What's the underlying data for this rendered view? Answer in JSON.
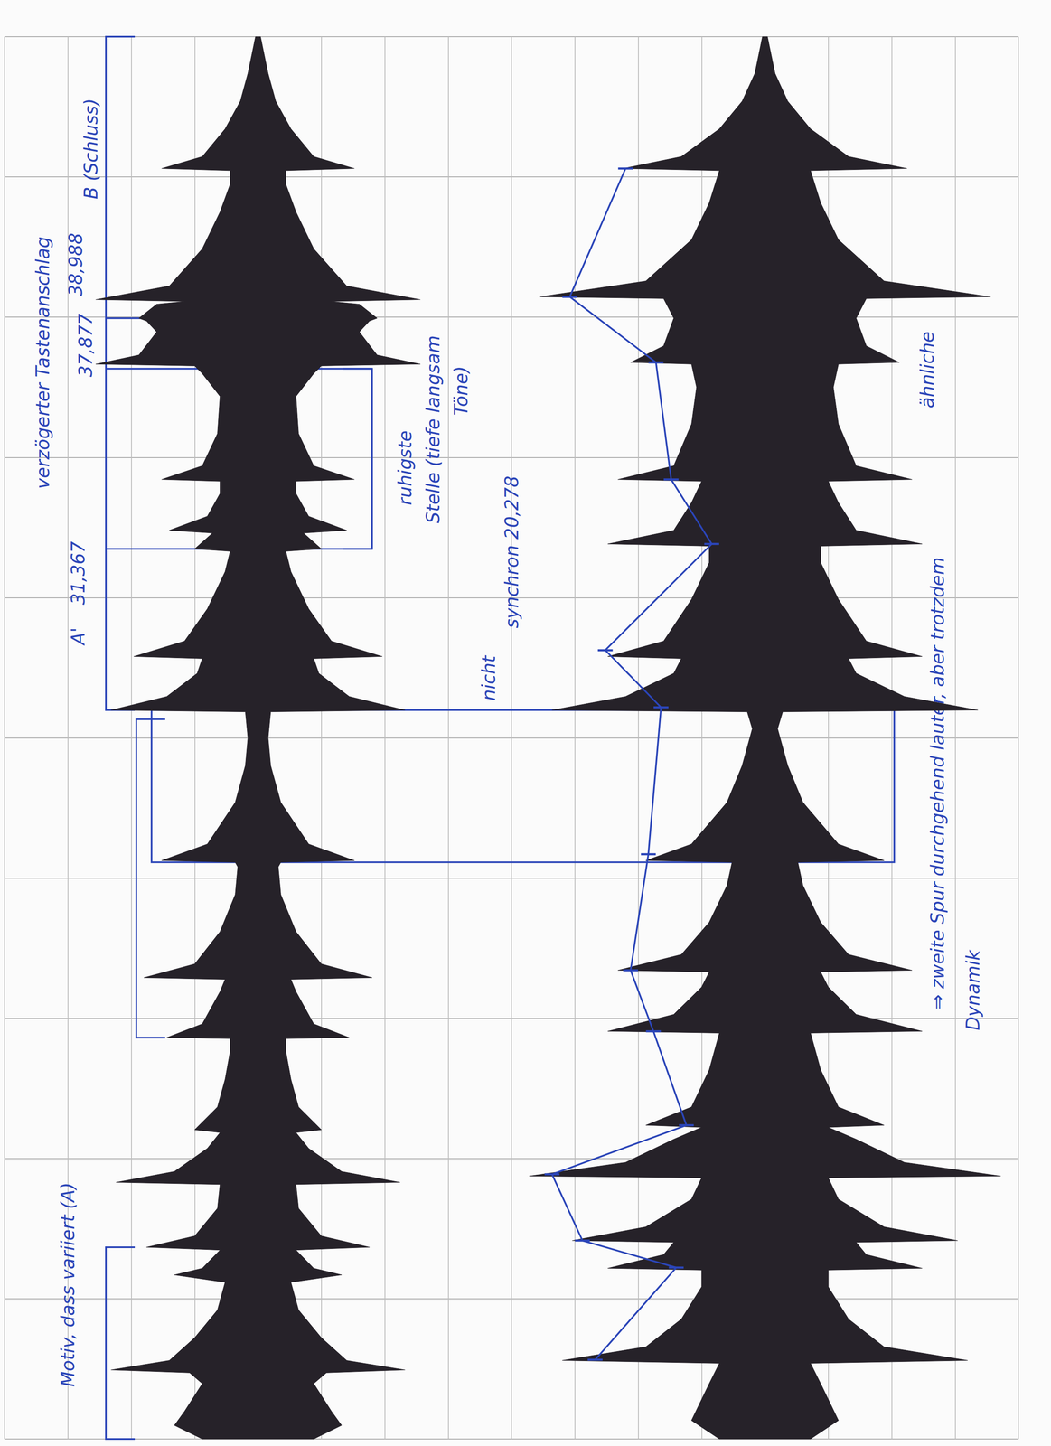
{
  "chart_data": {
    "type": "waveform",
    "xlim": [
      0,
      40
    ],
    "xticks": [
      0,
      4,
      8,
      12,
      16,
      20,
      24,
      28,
      32,
      36,
      40
    ],
    "ylim": [
      -1,
      1
    ],
    "yticks": [
      -1,
      -0.75,
      -0.5,
      -0.25,
      0,
      0.25,
      0.5,
      0.75,
      1
    ],
    "grid": true,
    "tick_labels": false,
    "series": [
      {
        "color": "#262229",
        "x": [
          0,
          0.39,
          0.79,
          1.58,
          1.89,
          1.97,
          2.24,
          2.89,
          3.68,
          4.47,
          4.68,
          4.87,
          5.39,
          5.47,
          5.79,
          6.58,
          7.26,
          7.32,
          7.63,
          8.29,
          8.74,
          8.82,
          9.47,
          10.26,
          11.05,
          11.42,
          11.45,
          11.84,
          12.76,
          13.11,
          13.16,
          13.55,
          14.47,
          15.53,
          16.32,
          16.45,
          16.5,
          16.97,
          18.16,
          19.21,
          20,
          20.74,
          20.79,
          21.18,
          21.84,
          22.26,
          22.32,
          22.76,
          23.68,
          24.74,
          25.32,
          25.39,
          25.84,
          25.92,
          26.32,
          26.97,
          27.32,
          27.37,
          27.76,
          28.68,
          29.74,
          30.39,
          30.61,
          30.66,
          30.92,
          31.58,
          31.89,
          31.97,
          32.37,
          32.45,
          32.5,
          32.89,
          33.95,
          35,
          35.79,
          36.18,
          36.24,
          36.58,
          37.37,
          38.16,
          38.95,
          40
        ],
        "values": [
          0.22,
          0.33,
          0.29,
          0.22,
          0.27,
          0.58,
          0.35,
          0.25,
          0.16,
          0.13,
          0.33,
          0.22,
          0.15,
          0.44,
          0.25,
          0.16,
          0.15,
          0.56,
          0.33,
          0.2,
          0.15,
          0.25,
          0.16,
          0.13,
          0.11,
          0.11,
          0.36,
          0.22,
          0.15,
          0.13,
          0.45,
          0.25,
          0.15,
          0.09,
          0.08,
          0.09,
          0.38,
          0.2,
          0.09,
          0.05,
          0.04,
          0.05,
          0.58,
          0.36,
          0.24,
          0.22,
          0.49,
          0.29,
          0.2,
          0.13,
          0.11,
          0.25,
          0.18,
          0.35,
          0.2,
          0.15,
          0.15,
          0.38,
          0.22,
          0.16,
          0.15,
          0.22,
          0.25,
          0.64,
          0.47,
          0.4,
          0.44,
          0.47,
          0.4,
          0.29,
          0.64,
          0.35,
          0.22,
          0.15,
          0.11,
          0.11,
          0.38,
          0.22,
          0.13,
          0.07,
          0.04,
          0.01
        ]
      },
      {
        "color": "#262229",
        "x": [
          0,
          0.53,
          1.58,
          2.16,
          2.24,
          2.63,
          3.42,
          4.34,
          4.82,
          4.87,
          5.26,
          5.61,
          5.66,
          6.05,
          6.84,
          7.45,
          7.5,
          7.89,
          8.55,
          8.89,
          8.95,
          9.47,
          10.53,
          11.58,
          11.63,
          12.11,
          12.89,
          13.32,
          13.37,
          13.82,
          14.74,
          15.79,
          16.45,
          16.5,
          16.97,
          18.16,
          19.21,
          20.26,
          20.74,
          20.79,
          21.18,
          21.84,
          22.26,
          22.32,
          22.76,
          23.95,
          25,
          25.47,
          25.53,
          25.92,
          26.71,
          27.32,
          27.37,
          27.76,
          28.95,
          30,
          30.66,
          30.71,
          31.18,
          31.97,
          32.53,
          32.58,
          33.03,
          34.21,
          35.26,
          36.18,
          36.24,
          36.58,
          37.37,
          38.16,
          38.95,
          40
        ],
        "values": [
          0.18,
          0.29,
          0.22,
          0.18,
          0.8,
          0.47,
          0.33,
          0.25,
          0.25,
          0.62,
          0.4,
          0.36,
          0.76,
          0.47,
          0.29,
          0.25,
          0.93,
          0.55,
          0.36,
          0.25,
          0.47,
          0.29,
          0.22,
          0.18,
          0.62,
          0.36,
          0.25,
          0.22,
          0.58,
          0.33,
          0.22,
          0.15,
          0.13,
          0.47,
          0.29,
          0.15,
          0.09,
          0.05,
          0.07,
          0.84,
          0.55,
          0.36,
          0.33,
          0.62,
          0.4,
          0.29,
          0.22,
          0.22,
          0.62,
          0.36,
          0.29,
          0.25,
          0.58,
          0.36,
          0.29,
          0.27,
          0.29,
          0.53,
          0.4,
          0.36,
          0.4,
          0.89,
          0.47,
          0.29,
          0.22,
          0.18,
          0.56,
          0.33,
          0.18,
          0.09,
          0.04,
          0.01
        ]
      }
    ],
    "dynamics": {
      "color": "#2b45b8",
      "marker": "dash",
      "track": 2,
      "x": [
        2.26,
        4.89,
        5.66,
        7.55,
        8.95,
        11.63,
        13.37,
        16.68,
        20.87,
        22.5,
        25.53,
        27.37,
        30.71,
        32.58,
        36.24
      ],
      "values": [
        -0.67,
        -0.35,
        -0.72,
        -0.84,
        -0.31,
        -0.44,
        -0.53,
        -0.46,
        -0.41,
        -0.63,
        -0.21,
        -0.37,
        -0.43,
        -0.77,
        -0.55
      ]
    },
    "brackets": [
      {
        "from": 20.79,
        "to": 40,
        "x": -0.6
      },
      {
        "from": 11.45,
        "to": 20.53,
        "x": -0.48
      },
      {
        "from": 0,
        "to": 5.47,
        "x": -0.6
      },
      {
        "from": 25.39,
        "to": 30.53,
        "x": 0.45
      }
    ],
    "box": {
      "from": 16.45,
      "to": 20.79,
      "x1": -0.42,
      "x2": 0.51
    },
    "lines": [
      {
        "y": 25.39,
        "from": -0.6,
        "to": 0.45
      },
      {
        "y": 30.53,
        "from": -0.6,
        "to": 0.45
      },
      {
        "y": 31.97,
        "from": -0.6,
        "to": -0.04
      }
    ],
    "annotations": [
      {
        "text": "Motiv, dass variiert (A)",
        "track": 1,
        "x": -0.75,
        "y": 4.4
      },
      {
        "text": "A'",
        "track": 1,
        "x": -0.71,
        "y": 22.9
      },
      {
        "text": "31,367",
        "track": 1,
        "x": -0.71,
        "y": 24.7
      },
      {
        "text": "verzögerter Tastenanschlag",
        "track": 1,
        "x": -0.85,
        "y": 30.7
      },
      {
        "text": "37,877",
        "track": 1,
        "x": -0.68,
        "y": 31.2
      },
      {
        "text": "38,988",
        "track": 1,
        "x": -0.72,
        "y": 33.5
      },
      {
        "text": "B (Schluss)",
        "track": 1,
        "x": -0.66,
        "y": 36.8
      },
      {
        "text": "ruhigste",
        "track": 1,
        "x": 0.58,
        "y": 27.7
      },
      {
        "text": "Stelle (tiefe langsam",
        "track": 1,
        "x": 0.69,
        "y": 28.8
      },
      {
        "text": "Töne)",
        "track": 1,
        "x": 0.8,
        "y": 29.9
      },
      {
        "text": "nicht",
        "track": 1,
        "x": 0.91,
        "y": 21.7
      },
      {
        "text": "synchron 20,278",
        "track": 1,
        "x": 1.0,
        "y": 25.3
      },
      {
        "text": "⇒ zweite Spur durchgehend lauter, aber trotzdem",
        "track": 2,
        "x": 0.68,
        "y": 18.7
      },
      {
        "text": "Dynamik",
        "track": 2,
        "x": 0.82,
        "y": 12.8
      },
      {
        "text": "ähnliche",
        "track": 2,
        "x": 0.64,
        "y": 30.5
      }
    ]
  }
}
